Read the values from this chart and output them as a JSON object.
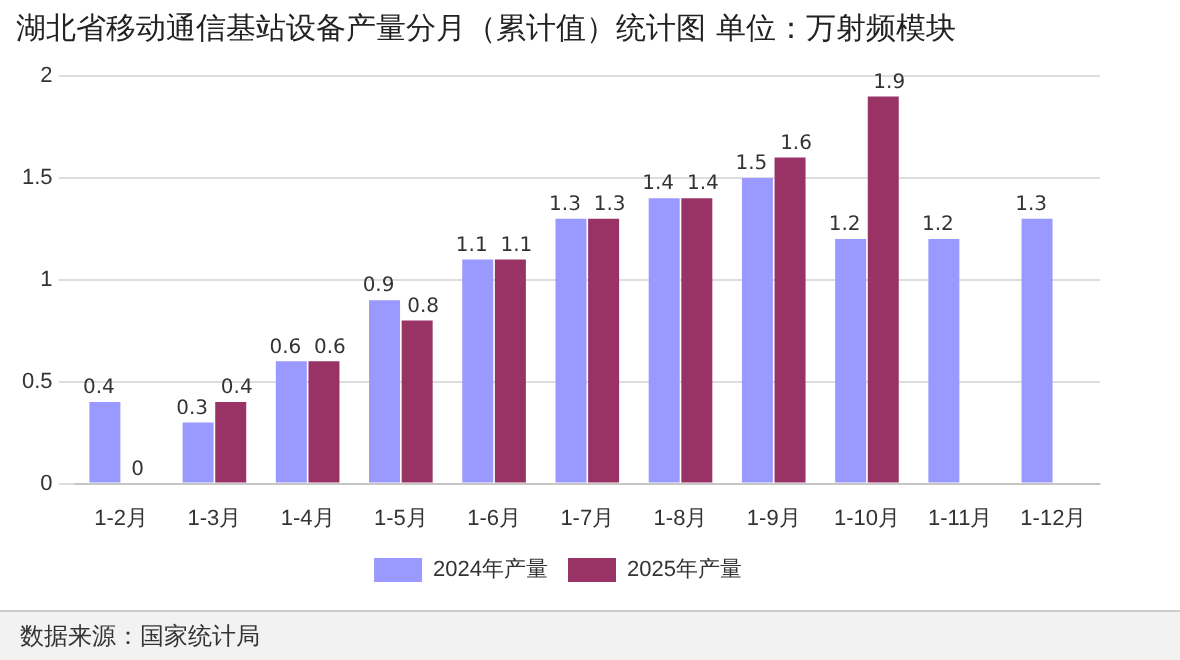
{
  "chart_data": {
    "type": "bar",
    "title": "湖北省移动通信基站设备产量分月（累计值）统计图 单位：万射频模块",
    "categories": [
      "1-2月",
      "1-3月",
      "1-4月",
      "1-5月",
      "1-6月",
      "1-7月",
      "1-8月",
      "1-9月",
      "1-10月",
      "1-11月",
      "1-12月"
    ],
    "series": [
      {
        "name": "2024年产量",
        "color": "#9999ff",
        "values": [
          0.4,
          0.3,
          0.6,
          0.9,
          1.1,
          1.3,
          1.4,
          1.5,
          1.2,
          1.2,
          1.3
        ]
      },
      {
        "name": "2025年产量",
        "color": "#993366",
        "values": [
          0,
          0.4,
          0.6,
          0.8,
          1.1,
          1.3,
          1.4,
          1.6,
          1.9,
          null,
          null
        ]
      }
    ],
    "ylim": [
      0,
      2
    ],
    "yticks": [
      0,
      0.5,
      1,
      1.5,
      2
    ],
    "grid": "y",
    "legend": "bottom",
    "data_labels": true,
    "annotations": [
      "数据来源：国家统计局"
    ]
  }
}
